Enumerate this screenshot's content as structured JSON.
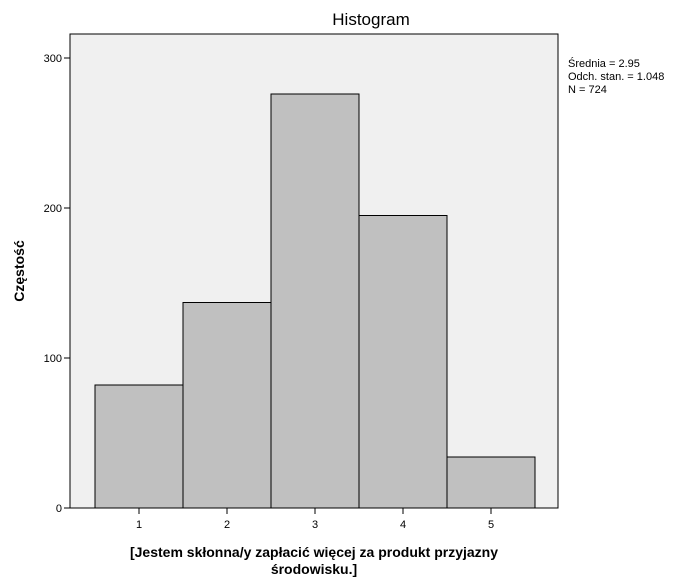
{
  "chart_data": {
    "type": "bar",
    "title": "Histogram",
    "categories": [
      "1",
      "2",
      "3",
      "4",
      "5"
    ],
    "values": [
      82,
      137,
      276,
      195,
      34
    ],
    "xlabel_lines": [
      "[Jestem skłonna/y zapłacić więcej za produkt przyjazny",
      "środowisku.]"
    ],
    "ylabel": "Częstość",
    "ylim": [
      0,
      316
    ],
    "yticks": [
      0,
      100,
      200,
      300
    ],
    "grid": false,
    "legend": "none",
    "bar_color": "#c0c0c0",
    "plot_background": "#f0f0f0",
    "stats": [
      "Średnia = 2.95",
      "Odch. stan. = 1.048",
      "N = 724"
    ]
  }
}
